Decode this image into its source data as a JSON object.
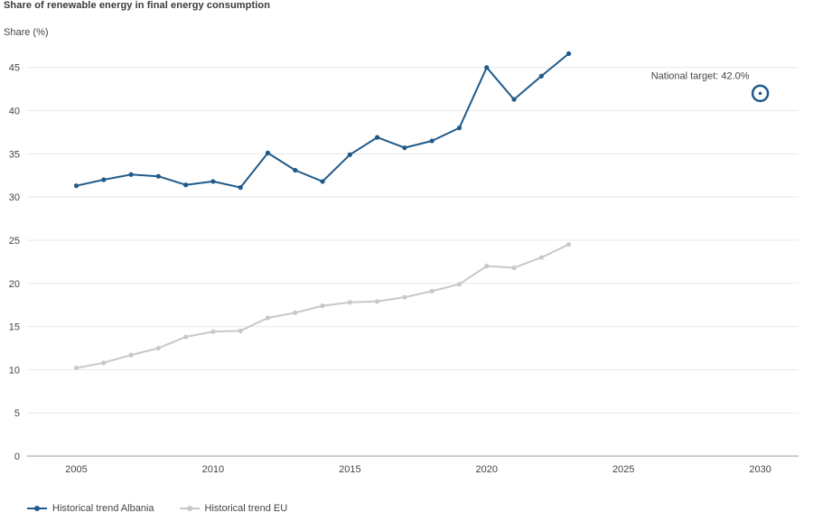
{
  "chart_data": {
    "type": "line",
    "title": "Share of renewable energy in final energy consumption",
    "ylabel": "Share (%)",
    "xlabel": "",
    "xlim": [
      2003.2,
      2031.4
    ],
    "ylim": [
      0,
      48
    ],
    "x_ticks": [
      2005,
      2010,
      2015,
      2020,
      2025,
      2030
    ],
    "y_ticks": [
      0,
      5,
      10,
      15,
      20,
      25,
      30,
      35,
      40,
      45
    ],
    "x": [
      2005,
      2006,
      2007,
      2008,
      2009,
      2010,
      2011,
      2012,
      2013,
      2014,
      2015,
      2016,
      2017,
      2018,
      2019,
      2020,
      2021,
      2022,
      2023
    ],
    "series": [
      {
        "name": "Historical trend Albania",
        "color": "#1f5a8a",
        "values": [
          31.3,
          32.0,
          32.6,
          32.4,
          31.4,
          31.8,
          31.1,
          35.1,
          33.1,
          31.8,
          34.9,
          36.9,
          35.7,
          36.5,
          38.0,
          45.0,
          41.3,
          44.0,
          46.6
        ]
      },
      {
        "name": "Historical trend EU",
        "color": "#c8c8c8",
        "values": [
          10.2,
          10.8,
          11.7,
          12.5,
          13.8,
          14.4,
          14.5,
          16.0,
          16.6,
          17.4,
          17.8,
          17.9,
          18.4,
          19.1,
          19.9,
          22.0,
          21.8,
          23.0,
          24.5
        ]
      }
    ],
    "target": {
      "label": "National target: 42.0%",
      "x": 2030,
      "y": 42.0,
      "color": "#1f5a8a"
    },
    "grid": true,
    "legend_position": "bottom-left"
  }
}
